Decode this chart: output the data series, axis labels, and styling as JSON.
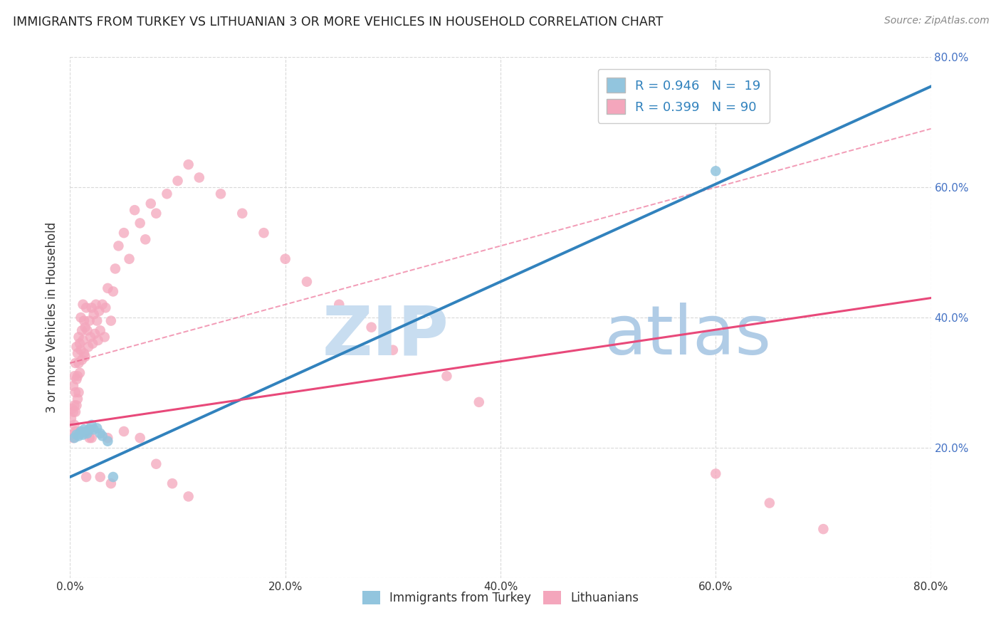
{
  "title": "IMMIGRANTS FROM TURKEY VS LITHUANIAN 3 OR MORE VEHICLES IN HOUSEHOLD CORRELATION CHART",
  "source": "Source: ZipAtlas.com",
  "ylabel": "3 or more Vehicles in Household",
  "xmin": 0.0,
  "xmax": 0.8,
  "ymin": 0.0,
  "ymax": 0.8,
  "xtick_vals": [
    0.0,
    0.2,
    0.4,
    0.6,
    0.8
  ],
  "xtick_labels": [
    "0.0%",
    "20.0%",
    "40.0%",
    "60.0%",
    "80.0%"
  ],
  "ytick_vals": [
    0.0,
    0.2,
    0.4,
    0.6,
    0.8
  ],
  "blue_color": "#92c5de",
  "pink_color": "#f4a6bc",
  "blue_marker_color": "#7ab8d4",
  "blue_line_color": "#3182bd",
  "pink_line_color": "#e8497a",
  "right_axis_color": "#4472c4",
  "grid_color": "#d9d9d9",
  "background_color": "#ffffff",
  "blue_scatter_x": [
    0.004,
    0.006,
    0.008,
    0.009,
    0.01,
    0.011,
    0.012,
    0.013,
    0.015,
    0.016,
    0.018,
    0.02,
    0.022,
    0.025,
    0.028,
    0.03,
    0.035,
    0.04,
    0.6
  ],
  "blue_scatter_y": [
    0.215,
    0.22,
    0.218,
    0.222,
    0.225,
    0.223,
    0.22,
    0.228,
    0.225,
    0.222,
    0.228,
    0.235,
    0.228,
    0.23,
    0.222,
    0.218,
    0.21,
    0.155,
    0.625
  ],
  "pink_scatter_x": [
    0.001,
    0.002,
    0.002,
    0.003,
    0.003,
    0.003,
    0.004,
    0.004,
    0.004,
    0.005,
    0.005,
    0.005,
    0.005,
    0.006,
    0.006,
    0.006,
    0.007,
    0.007,
    0.007,
    0.008,
    0.008,
    0.008,
    0.009,
    0.009,
    0.01,
    0.01,
    0.011,
    0.011,
    0.012,
    0.012,
    0.013,
    0.013,
    0.014,
    0.014,
    0.015,
    0.016,
    0.017,
    0.018,
    0.019,
    0.02,
    0.021,
    0.022,
    0.023,
    0.024,
    0.025,
    0.026,
    0.027,
    0.028,
    0.03,
    0.032,
    0.033,
    0.035,
    0.038,
    0.04,
    0.042,
    0.045,
    0.05,
    0.055,
    0.06,
    0.065,
    0.07,
    0.075,
    0.08,
    0.09,
    0.1,
    0.11,
    0.12,
    0.14,
    0.16,
    0.18,
    0.2,
    0.22,
    0.25,
    0.28,
    0.3,
    0.35,
    0.38,
    0.02,
    0.035,
    0.05,
    0.065,
    0.08,
    0.095,
    0.11,
    0.6,
    0.65,
    0.7,
    0.028,
    0.038,
    0.018,
    0.015
  ],
  "pink_scatter_y": [
    0.245,
    0.26,
    0.22,
    0.295,
    0.255,
    0.215,
    0.31,
    0.265,
    0.235,
    0.33,
    0.285,
    0.255,
    0.225,
    0.355,
    0.305,
    0.265,
    0.345,
    0.31,
    0.275,
    0.37,
    0.33,
    0.285,
    0.36,
    0.315,
    0.4,
    0.35,
    0.38,
    0.335,
    0.42,
    0.365,
    0.395,
    0.345,
    0.385,
    0.34,
    0.415,
    0.38,
    0.355,
    0.395,
    0.37,
    0.415,
    0.36,
    0.405,
    0.375,
    0.42,
    0.395,
    0.365,
    0.41,
    0.38,
    0.42,
    0.37,
    0.415,
    0.445,
    0.395,
    0.44,
    0.475,
    0.51,
    0.53,
    0.49,
    0.565,
    0.545,
    0.52,
    0.575,
    0.56,
    0.59,
    0.61,
    0.635,
    0.615,
    0.59,
    0.56,
    0.53,
    0.49,
    0.455,
    0.42,
    0.385,
    0.35,
    0.31,
    0.27,
    0.215,
    0.215,
    0.225,
    0.215,
    0.175,
    0.145,
    0.125,
    0.16,
    0.115,
    0.075,
    0.155,
    0.145,
    0.215,
    0.155
  ],
  "blue_line_x": [
    0.0,
    0.8
  ],
  "blue_line_y": [
    0.155,
    0.755
  ],
  "pink_line_x": [
    0.0,
    0.8
  ],
  "pink_line_y": [
    0.235,
    0.43
  ],
  "dashed_line_x": [
    0.0,
    0.8
  ],
  "dashed_line_y": [
    0.33,
    0.69
  ],
  "watermark_zip_color": "#c8ddf0",
  "watermark_atlas_color": "#b0cce6"
}
